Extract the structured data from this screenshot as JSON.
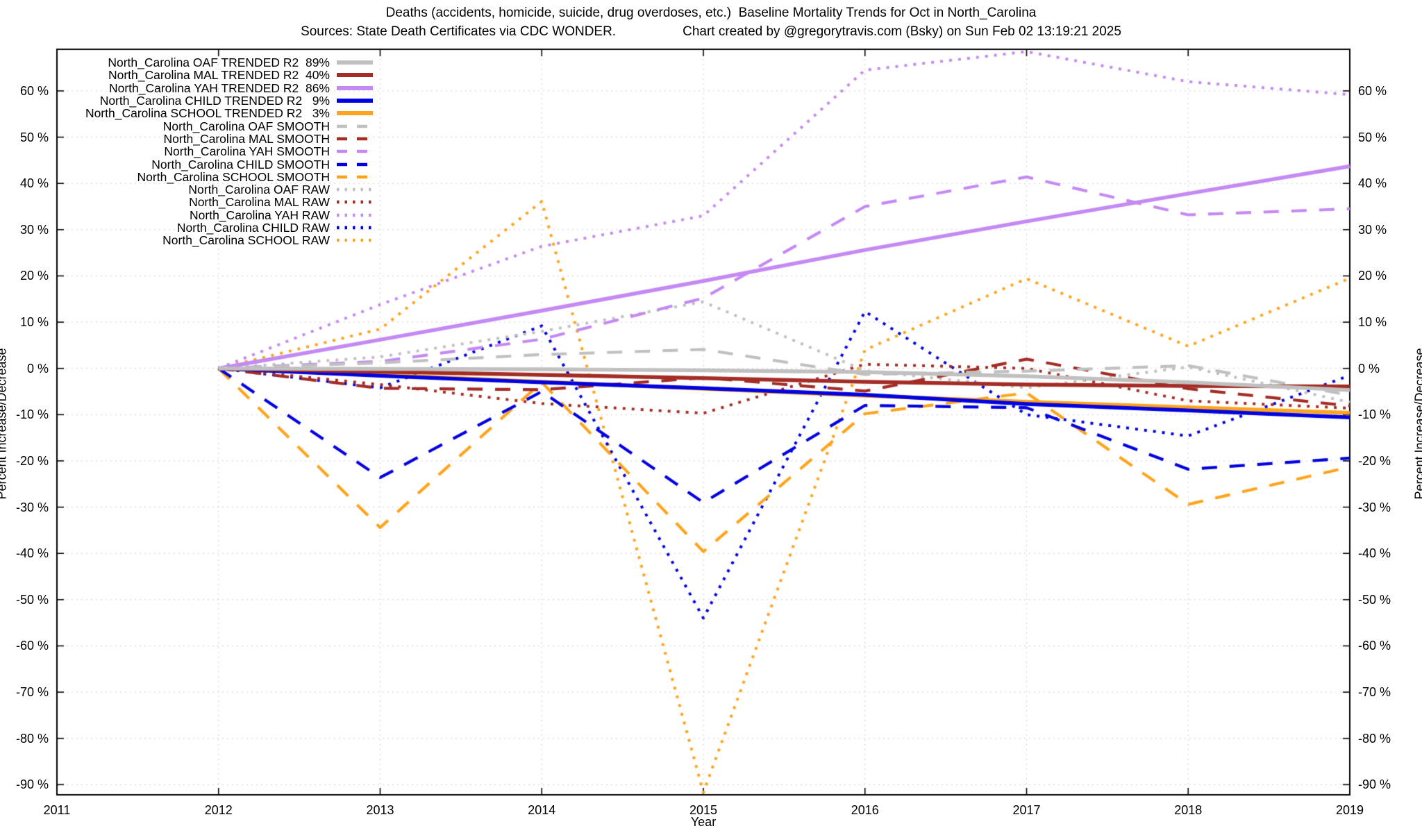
{
  "page": {
    "title_line1": "Deaths (accidents, homicide, suicide, drug overdoses, etc.)  Baseline Mortality Trends for Oct in North_Carolina",
    "title_line2_left": "Sources: State Death Certificates via CDC WONDER.",
    "title_line2_right": "Chart created by @gregorytravis.com (Bsky) on Sun Feb 02 13:19:21 2025",
    "xlabel": "Year",
    "ylabel_left": "Percent Increase/Decrease",
    "ylabel_right": "Percent Increase/Decrease"
  },
  "colors": {
    "oaf": "#c0c0c0",
    "mal": "#a32c24",
    "yah": "#c489f2",
    "child": "#0202e0",
    "school": "#ffa41c",
    "grid": "#c9c9c9",
    "axis": "#000000",
    "background": "#ffffff"
  },
  "chart_data": {
    "type": "line",
    "x": [
      2012,
      2013,
      2014,
      2015,
      2016,
      2017,
      2018,
      2019
    ],
    "x_axis": {
      "min": 2011,
      "max": 2019,
      "ticks": [
        {
          "v": 2011,
          "label": "2011"
        },
        {
          "v": 2012,
          "label": "2012"
        },
        {
          "v": 2013,
          "label": "2013"
        },
        {
          "v": 2014,
          "label": "2014"
        },
        {
          "v": 2015,
          "label": "2015"
        },
        {
          "v": 2016,
          "label": "2016"
        },
        {
          "v": 2017,
          "label": "2017"
        },
        {
          "v": 2018,
          "label": "2018"
        },
        {
          "v": 2019,
          "label": "2019"
        }
      ]
    },
    "y_axis": {
      "min": -92.2,
      "max": 69,
      "tick_step": 10,
      "ticks": [
        {
          "v": 60,
          "label": "60 %"
        },
        {
          "v": 50,
          "label": "50 %"
        },
        {
          "v": 40,
          "label": "40 %"
        },
        {
          "v": 30,
          "label": "30 %"
        },
        {
          "v": 20,
          "label": "20 %"
        },
        {
          "v": 10,
          "label": "10 %"
        },
        {
          "v": 0,
          "label": "0 %"
        },
        {
          "v": -10,
          "label": "-10 %"
        },
        {
          "v": -20,
          "label": "-20 %"
        },
        {
          "v": -30,
          "label": "-30 %"
        },
        {
          "v": -40,
          "label": "-40 %"
        },
        {
          "v": -50,
          "label": "-50 %"
        },
        {
          "v": -60,
          "label": "-60 %"
        },
        {
          "v": -70,
          "label": "-70 %"
        },
        {
          "v": -80,
          "label": "-80 %"
        },
        {
          "v": -90,
          "label": "-90 %"
        }
      ]
    },
    "grid": true,
    "legend_position": "top-left",
    "series": [
      {
        "name": "oaf-trended",
        "label": "North_Carolina OAF TRENDED R2  89%",
        "r2": "89%",
        "style": "solid",
        "color": "#c0c0c0",
        "values": [
          0,
          -0.1,
          -0.2,
          -0.4,
          -0.8,
          -1.7,
          -3.0,
          -4.7
        ]
      },
      {
        "name": "mal-trended",
        "label": "North_Carolina MAL TRENDED R2  40%",
        "r2": "40%",
        "style": "solid",
        "color": "#a32c24",
        "values": [
          0,
          -0.7,
          -1.4,
          -2.1,
          -2.9,
          -3.5,
          -3.8,
          -3.9
        ]
      },
      {
        "name": "yah-trended",
        "label": "North_Carolina YAH TRENDED R2  86%",
        "r2": "86%",
        "style": "solid",
        "color": "#c489f2",
        "values": [
          0,
          6.2,
          12.5,
          18.9,
          25.6,
          31.8,
          37.8,
          43.7
        ]
      },
      {
        "name": "child-trended",
        "label": "North_Carolina CHILD TRENDED R2   9%",
        "r2": "9%",
        "style": "solid",
        "color": "#0202e0",
        "values": [
          0,
          -1.6,
          -3.0,
          -4.3,
          -5.7,
          -7.7,
          -9.1,
          -10.6
        ]
      },
      {
        "name": "school-trended",
        "label": "North_Carolina SCHOOL TRENDED R2   3%",
        "r2": "3%",
        "style": "solid",
        "color": "#ffa41c",
        "values": [
          0,
          -1.4,
          -2.9,
          -4.4,
          -5.9,
          -7.2,
          -8.4,
          -9.6
        ]
      },
      {
        "name": "oaf-smooth",
        "label": "North_Carolina OAF SMOOTH",
        "style": "dashed",
        "color": "#c0c0c0",
        "values": [
          0,
          1.2,
          3.0,
          4.1,
          -1.3,
          -0.6,
          0.6,
          -5.8
        ]
      },
      {
        "name": "mal-smooth",
        "label": "North_Carolina MAL SMOOTH",
        "style": "dashed",
        "color": "#a32c24",
        "values": [
          0,
          -4.3,
          -4.6,
          -2.0,
          -4.9,
          2.0,
          -4.4,
          -8.1
        ]
      },
      {
        "name": "yah-smooth",
        "label": "North_Carolina YAH SMOOTH",
        "style": "dashed",
        "color": "#c489f2",
        "values": [
          0,
          1.5,
          6.3,
          15.2,
          35.0,
          41.4,
          33.2,
          34.5
        ]
      },
      {
        "name": "child-smooth",
        "label": "North_Carolina CHILD SMOOTH",
        "style": "dashed",
        "color": "#0202e0",
        "values": [
          0,
          -23.6,
          -5.0,
          -29.0,
          -8.0,
          -8.5,
          -21.8,
          -19.4
        ]
      },
      {
        "name": "school-smooth",
        "label": "North_Carolina SCHOOL SMOOTH",
        "style": "dashed",
        "color": "#ffa41c",
        "values": [
          0,
          -34.4,
          -3.0,
          -39.6,
          -9.8,
          -5.3,
          -29.4,
          -21.3
        ]
      },
      {
        "name": "oaf-raw",
        "label": "North_Carolina OAF RAW",
        "style": "dotted",
        "color": "#c0c0c0",
        "values": [
          0,
          2.5,
          8.0,
          14.4,
          -0.5,
          -4.2,
          0.3,
          -7.3
        ]
      },
      {
        "name": "mal-raw",
        "label": "North_Carolina MAL RAW",
        "style": "dotted",
        "color": "#a32c24",
        "values": [
          0,
          -3.5,
          -7.6,
          -9.7,
          0.9,
          0.0,
          -7.0,
          -8.6
        ]
      },
      {
        "name": "yah-raw",
        "label": "North_Carolina YAH RAW",
        "style": "dotted",
        "color": "#c489f2",
        "values": [
          0,
          13.8,
          26.4,
          33.0,
          64.5,
          68.5,
          62.0,
          59.2
        ]
      },
      {
        "name": "child-raw",
        "label": "North_Carolina CHILD RAW",
        "style": "dotted",
        "color": "#0202e0",
        "values": [
          0,
          -4.2,
          9.2,
          -54.0,
          12.3,
          -10.0,
          -14.6,
          -1.5
        ]
      },
      {
        "name": "school-raw",
        "label": "North_Carolina SCHOOL RAW",
        "style": "dotted",
        "color": "#ffa41c",
        "values": [
          0,
          8.5,
          36.1,
          -91.7,
          4.0,
          19.4,
          4.8,
          19.5
        ]
      }
    ]
  }
}
